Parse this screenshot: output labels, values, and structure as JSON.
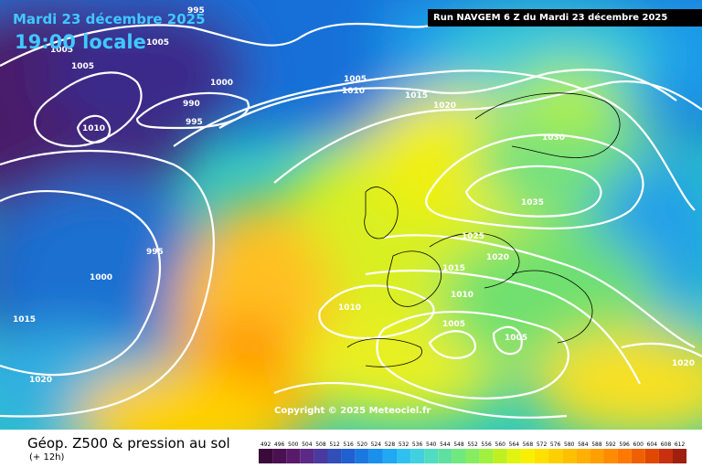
{
  "header": {
    "date": "Mardi 23 décembre 2025",
    "time": "19:00 locale",
    "run": "Run NAVGEM 6 Z du Mardi 23 décembre 2025"
  },
  "copyright": "Copyright © 2025 Meteociel.fr",
  "footer": {
    "title": "Géop. Z500 & pression au sol",
    "subtitle": "(+ 12h)"
  },
  "isobar_labels": [
    "995",
    "1005",
    "1005",
    "1005",
    "1000",
    "990",
    "995",
    "1010",
    "995",
    "1000",
    "1015",
    "1020",
    "1005",
    "1010",
    "1015",
    "1020",
    "1030",
    "1035",
    "1025",
    "1020",
    "1015",
    "1010",
    "1010",
    "1005",
    "1005",
    "1020"
  ],
  "scale": {
    "values": [
      "492",
      "496",
      "500",
      "504",
      "508",
      "512",
      "516",
      "520",
      "524",
      "528",
      "532",
      "536",
      "540",
      "544",
      "548",
      "552",
      "556",
      "560",
      "564",
      "568",
      "572",
      "576",
      "580",
      "584",
      "588",
      "592",
      "596",
      "600",
      "604",
      "608",
      "612"
    ],
    "colors": [
      "#3a0a3a",
      "#4b1050",
      "#5a1a6a",
      "#5b2a86",
      "#4a3aa0",
      "#3050b8",
      "#2060d0",
      "#1a78e0",
      "#1890ec",
      "#20a8f0",
      "#30c0f0",
      "#40d0e0",
      "#50dcc0",
      "#60e0a0",
      "#70e880",
      "#88ec60",
      "#a0f040",
      "#c0f020",
      "#e0f410",
      "#f8f000",
      "#ffe000",
      "#ffd000",
      "#ffc000",
      "#ffb000",
      "#ffa000",
      "#ff8c00",
      "#ff7800",
      "#f06000",
      "#e04800",
      "#c83010",
      "#a02010"
    ]
  }
}
